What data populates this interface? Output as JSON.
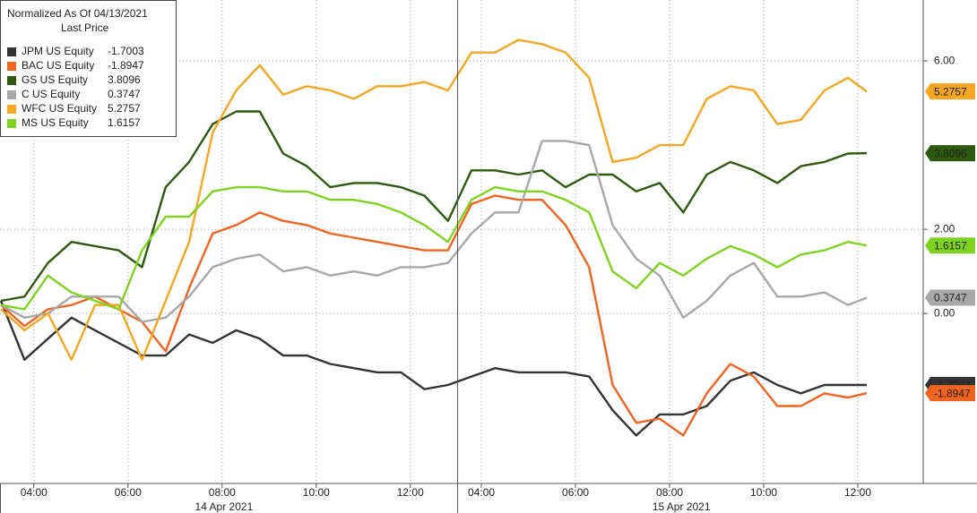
{
  "chart_data": {
    "type": "line",
    "legend_title": "Normalized As Of 04/13/2021",
    "legend_subtitle": "Last Price",
    "legend": "upper left",
    "grid": true,
    "x": [
      3.3,
      3.8,
      4.3,
      4.8,
      5.3,
      5.8,
      6.3,
      6.8,
      7.3,
      7.8,
      8.3,
      8.8,
      9.3,
      9.8,
      10.3,
      10.8,
      11.3,
      11.8,
      12.3,
      12.8,
      13.3,
      13.8,
      14.3,
      14.8,
      15.3,
      15.8,
      16.3,
      16.8,
      17.3,
      17.8,
      18.3,
      18.8,
      19.3,
      19.8,
      20.3,
      20.8,
      21.3,
      21.7
    ],
    "xlim": [
      3.28,
      22.9
    ],
    "xticks": [
      {
        "value": 4,
        "label": "04:00"
      },
      {
        "value": 6,
        "label": "06:00"
      },
      {
        "value": 8,
        "label": "08:00"
      },
      {
        "value": 10,
        "label": "10:00"
      },
      {
        "value": 12,
        "label": "12:00"
      },
      {
        "value": 13.51,
        "label": "04:00"
      },
      {
        "value": 15.51,
        "label": "06:00"
      },
      {
        "value": 17.51,
        "label": "08:00"
      },
      {
        "value": 19.51,
        "label": "10:00"
      },
      {
        "value": 21.51,
        "label": "12:00"
      }
    ],
    "day_labels": [
      {
        "value": 8.04,
        "label": "14 Apr 2021"
      },
      {
        "value": 17.76,
        "label": "15 Apr 2021"
      }
    ],
    "ylim": [
      -4.04,
      7.45
    ],
    "yticks": [
      {
        "value": 6,
        "label": "6.00"
      },
      {
        "value": 2,
        "label": "2.00"
      },
      {
        "value": 0,
        "label": "0.00"
      }
    ],
    "series": [
      {
        "name": "JPM US Equity",
        "color": "#333333",
        "values": [
          0.3,
          -1.1,
          -0.6,
          -0.1,
          -0.4,
          -0.7,
          -1.0,
          -1.0,
          -0.5,
          -0.7,
          -0.4,
          -0.6,
          -1.0,
          -1.0,
          -1.2,
          -1.3,
          -1.4,
          -1.4,
          -1.8,
          -1.7,
          -1.5,
          -1.3,
          -1.4,
          -1.4,
          -1.4,
          -1.5,
          -2.3,
          -2.9,
          -2.4,
          -2.4,
          -2.2,
          -1.6,
          -1.4,
          -1.7,
          -1.9,
          -1.7,
          -1.7,
          -1.7003
        ]
      },
      {
        "name": "BAC US Equity",
        "color": "#f06420",
        "values": [
          0.2,
          -0.3,
          0.1,
          0.2,
          0.4,
          0.1,
          -0.2,
          -0.9,
          0.6,
          1.9,
          2.1,
          2.4,
          2.2,
          2.1,
          1.9,
          1.8,
          1.7,
          1.6,
          1.5,
          1.5,
          2.6,
          2.8,
          2.7,
          2.7,
          2.1,
          1.1,
          -1.7,
          -2.6,
          -2.5,
          -2.9,
          -1.9,
          -1.2,
          -1.5,
          -2.2,
          -2.2,
          -1.9,
          -2.0,
          -1.8947
        ]
      },
      {
        "name": "GS US Equity",
        "color": "#2e5a10",
        "values": [
          0.3,
          0.4,
          1.2,
          1.7,
          1.6,
          1.5,
          1.1,
          3.0,
          3.6,
          4.5,
          4.8,
          4.8,
          3.8,
          3.5,
          3.0,
          3.1,
          3.1,
          3.0,
          2.8,
          2.2,
          3.4,
          3.4,
          3.3,
          3.4,
          3.0,
          3.3,
          3.3,
          2.9,
          3.1,
          2.4,
          3.3,
          3.6,
          3.4,
          3.1,
          3.5,
          3.6,
          3.8,
          3.8096
        ]
      },
      {
        "name": "C US Equity",
        "color": "#a8a8a8",
        "values": [
          0.2,
          -0.1,
          0,
          0.4,
          0.4,
          0.4,
          -0.2,
          -0.1,
          0.4,
          1.1,
          1.3,
          1.4,
          1.0,
          1.1,
          0.9,
          1.0,
          0.9,
          1.1,
          1.1,
          1.2,
          1.9,
          2.4,
          2.4,
          4.1,
          4.1,
          4.0,
          2.1,
          1.3,
          0.9,
          -0.1,
          0.3,
          0.9,
          1.2,
          0.4,
          0.4,
          0.5,
          0.2,
          0.3747
        ]
      },
      {
        "name": "WFC US Equity",
        "color": "#f5a623",
        "values": [
          0.1,
          -0.4,
          0,
          -1.1,
          0.2,
          0.2,
          -1.1,
          0.3,
          1.7,
          4.3,
          5.3,
          5.9,
          5.2,
          5.4,
          5.3,
          5.1,
          5.4,
          5.4,
          5.5,
          5.3,
          6.2,
          6.2,
          6.5,
          6.4,
          6.2,
          5.6,
          3.6,
          3.7,
          4.0,
          4.0,
          5.1,
          5.4,
          5.3,
          4.5,
          4.6,
          5.3,
          5.6,
          5.2757
        ]
      },
      {
        "name": "MS US Equity",
        "color": "#7ed321",
        "values": [
          0.2,
          0.1,
          0.9,
          0.5,
          0.3,
          0.1,
          1.5,
          2.3,
          2.3,
          2.9,
          3.0,
          3.0,
          2.9,
          2.9,
          2.7,
          2.7,
          2.6,
          2.4,
          2.1,
          1.7,
          2.7,
          3.0,
          2.9,
          2.9,
          2.7,
          2.4,
          1.0,
          0.6,
          1.2,
          0.9,
          1.3,
          1.6,
          1.4,
          1.1,
          1.4,
          1.5,
          1.7,
          1.6157
        ]
      }
    ]
  }
}
